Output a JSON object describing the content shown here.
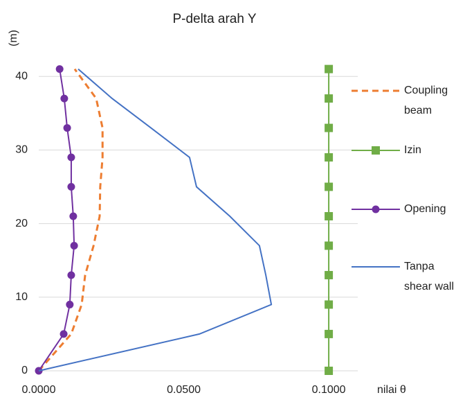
{
  "chart_data": {
    "type": "line",
    "title": "P-delta arah Y",
    "xlabel": "nilai θ",
    "ylabel": "(m)",
    "y": [
      0,
      5,
      9,
      13,
      17,
      21,
      25,
      29,
      33,
      37,
      41
    ],
    "series": [
      {
        "name": "Coupling beam",
        "color": "#ed7d31",
        "dash": true,
        "marker": null,
        "values": [
          0,
          0.0112,
          0.0148,
          0.016,
          0.0189,
          0.021,
          0.0212,
          0.022,
          0.022,
          0.0198,
          0.0124
        ]
      },
      {
        "name": "Izin",
        "color": "#70ad47",
        "dash": false,
        "marker": "square",
        "values": [
          0.1,
          0.1,
          0.1,
          0.1,
          0.1,
          0.1,
          0.1,
          0.1,
          0.1,
          0.1,
          0.1
        ]
      },
      {
        "name": "Opening",
        "color": "#7030a0",
        "dash": false,
        "marker": "circle",
        "values": [
          0,
          0.0086,
          0.0107,
          0.0112,
          0.0122,
          0.0119,
          0.0112,
          0.0112,
          0.0098,
          0.0088,
          0.0072
        ]
      },
      {
        "name": "Tanpa shear wall",
        "color": "#4472c4",
        "dash": false,
        "marker": null,
        "values": [
          0,
          0.0554,
          0.0802,
          0.0783,
          0.0761,
          0.0659,
          0.0544,
          0.052,
          0.0387,
          0.0253,
          0.0136
        ]
      }
    ],
    "xlim": [
      0,
      0.11
    ],
    "ylim": [
      0,
      42
    ],
    "xticks": [
      {
        "value": 0,
        "label": "0.0000"
      },
      {
        "value": 0.05,
        "label": "0.0500"
      },
      {
        "value": 0.1,
        "label": "0.1000"
      }
    ],
    "yticks": [
      0,
      10,
      20,
      30,
      40
    ],
    "grid": true,
    "legend": "right"
  }
}
